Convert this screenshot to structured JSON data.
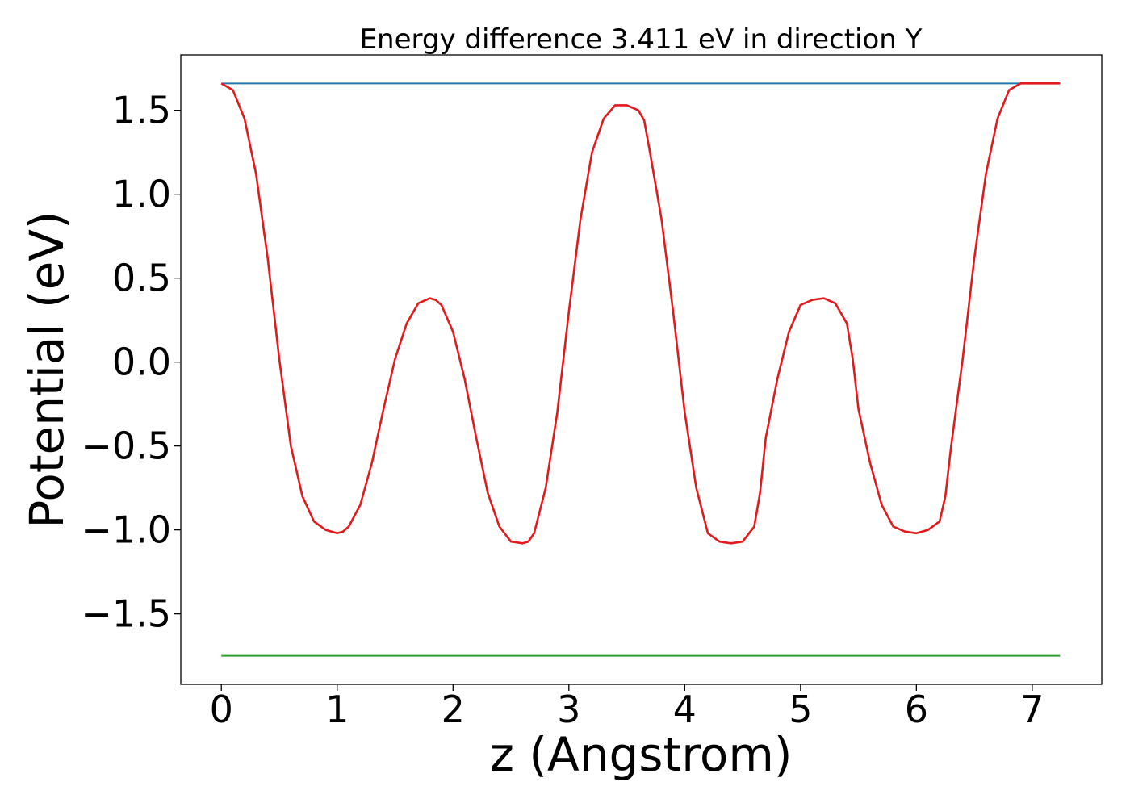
{
  "chart_data": {
    "type": "line",
    "title": "Energy difference 3.411 eV in direction Y",
    "xlabel": "z (Angstrom)",
    "ylabel": "Potential (eV)",
    "xlim": [
      -0.35,
      7.6
    ],
    "ylim": [
      -1.92,
      1.83
    ],
    "xticks": [
      0,
      1,
      2,
      3,
      4,
      5,
      6,
      7
    ],
    "xtick_labels": [
      "0",
      "1",
      "2",
      "3",
      "4",
      "5",
      "6",
      "7"
    ],
    "yticks": [
      1.5,
      1.0,
      0.5,
      0.0,
      -0.5,
      -1.0,
      -1.5
    ],
    "ytick_labels": [
      "1.5",
      "1.0",
      "0.5",
      "0.0",
      "−0.5",
      "−1.0",
      "−1.5"
    ],
    "grid": false,
    "legend": false,
    "series": [
      {
        "color": "#1f77b4",
        "x": [
          0.0,
          7.24
        ],
        "y": [
          1.66,
          1.66
        ]
      },
      {
        "color": "#2ca02c",
        "x": [
          0.0,
          7.24
        ],
        "y": [
          -1.75,
          -1.75
        ]
      },
      {
        "color": "#e31a1c",
        "x": [
          0.0,
          0.1,
          0.2,
          0.3,
          0.4,
          0.5,
          0.6,
          0.7,
          0.8,
          0.9,
          1.0,
          1.05,
          1.1,
          1.2,
          1.3,
          1.4,
          1.5,
          1.6,
          1.7,
          1.8,
          1.85,
          1.9,
          2.0,
          2.1,
          2.2,
          2.3,
          2.4,
          2.5,
          2.6,
          2.65,
          2.7,
          2.8,
          2.9,
          3.0,
          3.1,
          3.2,
          3.3,
          3.4,
          3.5,
          3.6,
          3.65,
          3.7,
          3.8,
          3.9,
          4.0,
          4.1,
          4.2,
          4.3,
          4.4,
          4.5,
          4.6,
          4.65,
          4.7,
          4.8,
          4.9,
          5.0,
          5.1,
          5.2,
          5.3,
          5.4,
          5.45,
          5.5,
          5.6,
          5.7,
          5.8,
          5.9,
          6.0,
          6.1,
          6.2,
          6.25,
          6.3,
          6.4,
          6.5,
          6.6,
          6.7,
          6.8,
          6.9,
          7.0,
          7.1,
          7.2,
          7.24
        ],
        "y": [
          1.66,
          1.62,
          1.45,
          1.12,
          0.62,
          0.02,
          -0.5,
          -0.8,
          -0.95,
          -1.0,
          -1.02,
          -1.01,
          -0.98,
          -0.85,
          -0.6,
          -0.28,
          0.02,
          0.23,
          0.35,
          0.38,
          0.37,
          0.34,
          0.18,
          -0.1,
          -0.45,
          -0.78,
          -0.98,
          -1.07,
          -1.08,
          -1.07,
          -1.02,
          -0.75,
          -0.3,
          0.3,
          0.85,
          1.25,
          1.45,
          1.53,
          1.53,
          1.5,
          1.44,
          1.25,
          0.85,
          0.3,
          -0.3,
          -0.75,
          -1.02,
          -1.07,
          -1.08,
          -1.07,
          -0.98,
          -0.78,
          -0.45,
          -0.1,
          0.18,
          0.34,
          0.37,
          0.38,
          0.35,
          0.23,
          0.02,
          -0.28,
          -0.6,
          -0.85,
          -0.98,
          -1.01,
          -1.02,
          -1.0,
          -0.95,
          -0.8,
          -0.5,
          0.02,
          0.62,
          1.12,
          1.45,
          1.62,
          1.66,
          1.66,
          1.66,
          1.66,
          1.66
        ]
      }
    ]
  }
}
